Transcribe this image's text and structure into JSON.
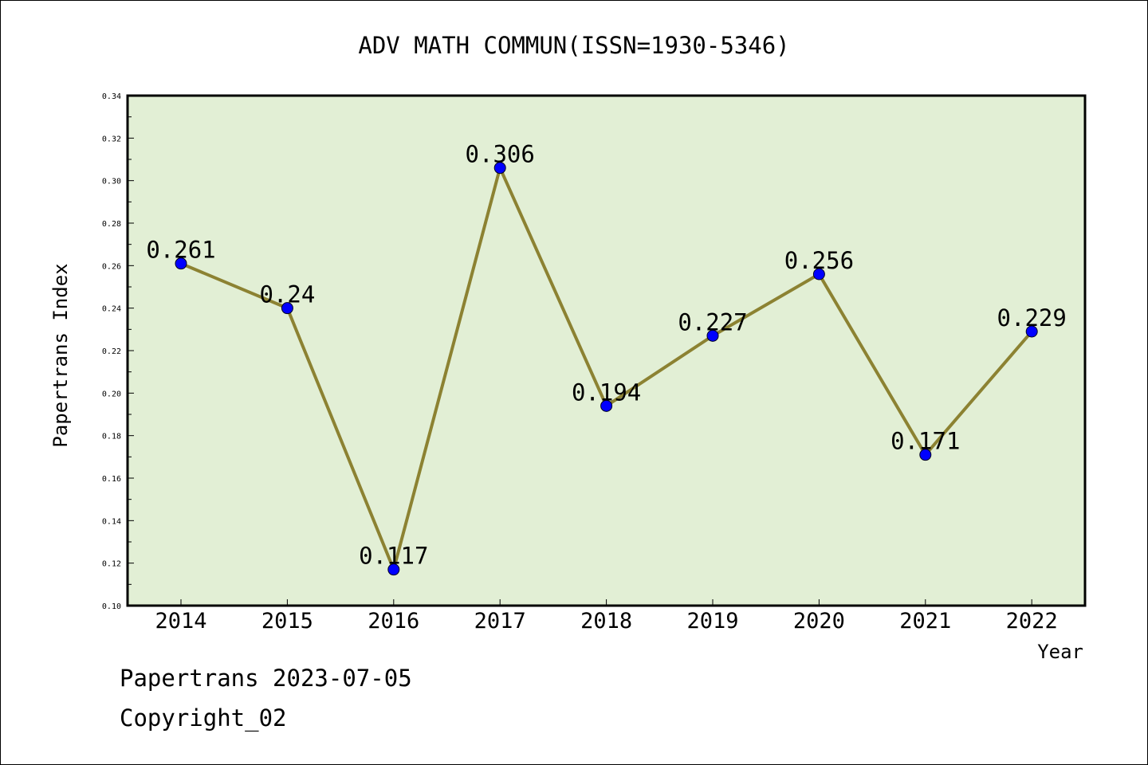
{
  "chart_data": {
    "type": "line",
    "title": "ADV MATH COMMUN(ISSN=1930-5346)",
    "xlabel": "Year",
    "ylabel": "Papertrans Index",
    "categories": [
      "2014",
      "2015",
      "2016",
      "2017",
      "2018",
      "2019",
      "2020",
      "2021",
      "2022"
    ],
    "series": [
      {
        "values": [
          0.261,
          0.24,
          0.117,
          0.306,
          0.194,
          0.227,
          0.256,
          0.171,
          0.229
        ],
        "data_labels": [
          "0.261",
          "0.24",
          "0.117",
          "0.306",
          "0.194",
          "0.227",
          "0.256",
          "0.171",
          "0.229"
        ]
      }
    ],
    "ylim": [
      0.1,
      0.34
    ],
    "yticks": [
      "0.10",
      "0.12",
      "0.14",
      "0.16",
      "0.18",
      "0.20",
      "0.22",
      "0.24",
      "0.26",
      "0.28",
      "0.30",
      "0.32",
      "0.34"
    ],
    "grid": false,
    "legend": "none",
    "colors": {
      "plot_background": "#e2efd5",
      "line": "#8c8232",
      "marker": "#0000ff"
    }
  },
  "footer": {
    "date_line": "Papertrans 2023-07-05",
    "copyright": "Copyright_02"
  }
}
